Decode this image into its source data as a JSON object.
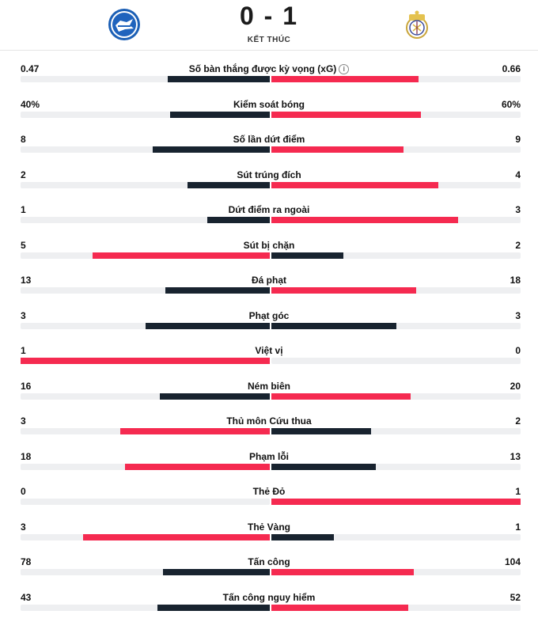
{
  "match": {
    "score": "0 - 1",
    "status": "KẾT THÚC",
    "home_team_logo": "alaves-crest-icon",
    "away_team_logo": "real-madrid-crest-icon"
  },
  "colors": {
    "leader": "#f52a50",
    "trailer": "#18232f",
    "track": "#eeeff1"
  },
  "stats": [
    {
      "label": "Số bàn thắng được kỳ vọng (xG)",
      "home": "0.47",
      "away": "0.66",
      "home_fill": 0.41,
      "away_fill": 0.59,
      "info": true
    },
    {
      "label": "Kiểm soát bóng",
      "home": "40%",
      "away": "60%",
      "home_fill": 0.4,
      "away_fill": 0.6
    },
    {
      "label": "Số lần dứt điểm",
      "home": "8",
      "away": "9",
      "home_fill": 0.47,
      "away_fill": 0.53
    },
    {
      "label": "Sút trúng đích",
      "home": "2",
      "away": "4",
      "home_fill": 0.33,
      "away_fill": 0.67
    },
    {
      "label": "Dứt điểm ra ngoài",
      "home": "1",
      "away": "3",
      "home_fill": 0.25,
      "away_fill": 0.75
    },
    {
      "label": "Sút bị chặn",
      "home": "5",
      "away": "2",
      "home_fill": 0.71,
      "away_fill": 0.29
    },
    {
      "label": "Đá phạt",
      "home": "13",
      "away": "18",
      "home_fill": 0.42,
      "away_fill": 0.58
    },
    {
      "label": "Phạt góc",
      "home": "3",
      "away": "3",
      "home_fill": 0.5,
      "away_fill": 0.5
    },
    {
      "label": "Việt vị",
      "home": "1",
      "away": "0",
      "home_fill": 1.0,
      "away_fill": 0.0
    },
    {
      "label": "Ném biên",
      "home": "16",
      "away": "20",
      "home_fill": 0.44,
      "away_fill": 0.56
    },
    {
      "label": "Thủ môn Cứu thua",
      "home": "3",
      "away": "2",
      "home_fill": 0.6,
      "away_fill": 0.4
    },
    {
      "label": "Phạm lỗi",
      "home": "18",
      "away": "13",
      "home_fill": 0.58,
      "away_fill": 0.42
    },
    {
      "label": "Thẻ Đỏ",
      "home": "0",
      "away": "1",
      "home_fill": 0.0,
      "away_fill": 1.0
    },
    {
      "label": "Thẻ Vàng",
      "home": "3",
      "away": "1",
      "home_fill": 0.75,
      "away_fill": 0.25
    },
    {
      "label": "Tấn công",
      "home": "78",
      "away": "104",
      "home_fill": 0.43,
      "away_fill": 0.57
    },
    {
      "label": "Tấn công nguy hiểm",
      "home": "43",
      "away": "52",
      "home_fill": 0.45,
      "away_fill": 0.55
    }
  ]
}
